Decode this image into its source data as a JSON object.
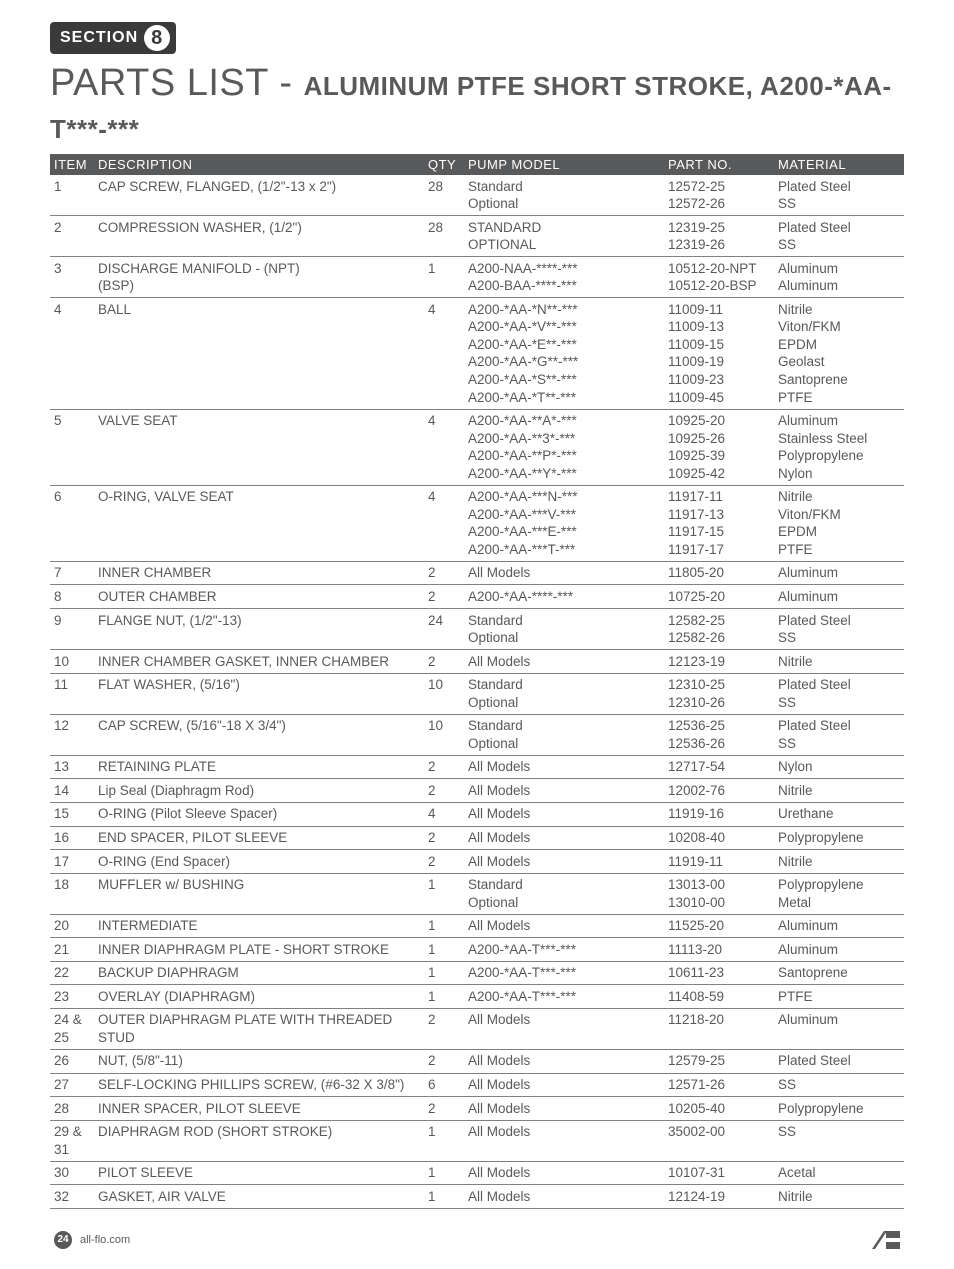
{
  "section": {
    "label": "SECTION",
    "number": "8"
  },
  "title": {
    "main": "PARTS LIST - ",
    "sub": "ALUMINUM PTFE SHORT STROKE, A200-*AA-T***-***"
  },
  "columns": [
    "ITEM",
    "DESCRIPTION",
    "QTY",
    "PUMP MODEL",
    "PART NO.",
    "MATERIAL"
  ],
  "rows": [
    {
      "item": "1",
      "desc": "CAP SCREW, FLANGED, (1/2\"-13 x 2\")",
      "qty": "28",
      "model": "Standard\nOptional",
      "part": "12572-25\n12572-26",
      "mat": "Plated Steel\nSS"
    },
    {
      "item": "2",
      "desc": "COMPRESSION WASHER, (1/2\")",
      "qty": "28",
      "model": "STANDARD\nOPTIONAL",
      "part": "12319-25\n12319-26",
      "mat": "Plated Steel\nSS"
    },
    {
      "item": "3",
      "desc": "DISCHARGE MANIFOLD - (NPT)\n(BSP)",
      "qty": "1",
      "model": "A200-NAA-****-***\nA200-BAA-****-***",
      "part": "10512-20-NPT\n10512-20-BSP",
      "mat": "Aluminum\nAluminum"
    },
    {
      "item": "4",
      "desc": "BALL",
      "qty": "4",
      "model": "A200-*AA-*N**-***\nA200-*AA-*V**-***\nA200-*AA-*E**-***\nA200-*AA-*G**-***\nA200-*AA-*S**-***\nA200-*AA-*T**-***",
      "part": "11009-11\n11009-13\n11009-15\n11009-19\n11009-23\n11009-45",
      "mat": "Nitrile\nViton/FKM\nEPDM\nGeolast\nSantoprene\nPTFE"
    },
    {
      "item": "5",
      "desc": "VALVE SEAT",
      "qty": "4",
      "model": "A200-*AA-**A*-***\nA200-*AA-**3*-***\nA200-*AA-**P*-***\nA200-*AA-**Y*-***",
      "part": "10925-20\n10925-26\n10925-39\n10925-42",
      "mat": "Aluminum\nStainless Steel\nPolypropylene\nNylon"
    },
    {
      "item": "6",
      "desc": "O-RING, VALVE SEAT",
      "qty": "4",
      "model": "A200-*AA-***N-***\nA200-*AA-***V-***\nA200-*AA-***E-***\nA200-*AA-***T-***",
      "part": "11917-11\n11917-13\n11917-15\n11917-17",
      "mat": "Nitrile\nViton/FKM\nEPDM\nPTFE"
    },
    {
      "item": "7",
      "desc": "INNER CHAMBER",
      "qty": "2",
      "model": "All Models",
      "part": "11805-20",
      "mat": "Aluminum"
    },
    {
      "item": "8",
      "desc": "OUTER CHAMBER",
      "qty": "2",
      "model": "A200-*AA-****-***",
      "part": "10725-20",
      "mat": "Aluminum"
    },
    {
      "item": "9",
      "desc": "FLANGE NUT, (1/2\"-13)",
      "qty": "24",
      "model": "Standard\nOptional",
      "part": "12582-25\n12582-26",
      "mat": "Plated Steel\nSS"
    },
    {
      "item": "10",
      "desc": "INNER CHAMBER GASKET, INNER CHAMBER",
      "qty": "2",
      "model": "All Models",
      "part": "12123-19",
      "mat": "Nitrile"
    },
    {
      "item": "11",
      "desc": "FLAT WASHER, (5/16\")",
      "qty": "10",
      "model": "Standard\nOptional",
      "part": "12310-25\n12310-26",
      "mat": "Plated Steel\nSS"
    },
    {
      "item": "12",
      "desc": "CAP SCREW, (5/16\"-18 X 3/4\")",
      "qty": "10",
      "model": "Standard\nOptional",
      "part": "12536-25\n12536-26",
      "mat": "Plated Steel\nSS"
    },
    {
      "item": "13",
      "desc": "RETAINING PLATE",
      "qty": "2",
      "model": "All Models",
      "part": "12717-54",
      "mat": "Nylon"
    },
    {
      "item": "14",
      "desc": "Lip Seal (Diaphragm Rod)",
      "qty": "2",
      "model": "All Models",
      "part": "12002-76",
      "mat": "Nitrile"
    },
    {
      "item": "15",
      "desc": "O-RING (Pilot Sleeve Spacer)",
      "qty": "4",
      "model": "All Models",
      "part": "11919-16",
      "mat": "Urethane"
    },
    {
      "item": "16",
      "desc": "END SPACER, PILOT SLEEVE",
      "qty": "2",
      "model": "All Models",
      "part": "10208-40",
      "mat": "Polypropylene"
    },
    {
      "item": "17",
      "desc": "O-RING (End Spacer)",
      "qty": "2",
      "model": "All Models",
      "part": "11919-11",
      "mat": "Nitrile"
    },
    {
      "item": "18",
      "desc": "MUFFLER w/ BUSHING",
      "qty": "1",
      "model": "Standard\nOptional",
      "part": "13013-00\n13010-00",
      "mat": "Polypropylene\nMetal"
    },
    {
      "item": "20",
      "desc": "INTERMEDIATE",
      "qty": "1",
      "model": "All Models",
      "part": "11525-20",
      "mat": "Aluminum"
    },
    {
      "item": "21",
      "desc": "INNER DIAPHRAGM PLATE - SHORT STROKE",
      "qty": "1",
      "model": "A200-*AA-T***-***",
      "part": "11113-20",
      "mat": "Aluminum"
    },
    {
      "item": "22",
      "desc": "BACKUP DIAPHRAGM",
      "qty": "1",
      "model": "A200-*AA-T***-***",
      "part": "10611-23",
      "mat": "Santoprene"
    },
    {
      "item": "23",
      "desc": "OVERLAY (DIAPHRAGM)",
      "qty": "1",
      "model": "A200-*AA-T***-***",
      "part": "11408-59",
      "mat": "PTFE"
    },
    {
      "item": "24 & 25",
      "desc": "OUTER DIAPHRAGM PLATE WITH THREADED STUD",
      "qty": "2",
      "model": "All Models",
      "part": "11218-20",
      "mat": "Aluminum"
    },
    {
      "item": "26",
      "desc": "NUT,  (5/8\"-11)",
      "qty": "2",
      "model": "All Models",
      "part": "12579-25",
      "mat": "Plated Steel"
    },
    {
      "item": "27",
      "desc": "SELF-LOCKING PHILLIPS SCREW, (#6-32 X 3/8\")",
      "qty": "6",
      "model": "All Models",
      "part": "12571-26",
      "mat": "SS"
    },
    {
      "item": "28",
      "desc": "INNER SPACER, PILOT SLEEVE",
      "qty": "2",
      "model": "All Models",
      "part": "10205-40",
      "mat": "Polypropylene"
    },
    {
      "item": "29 & 31",
      "desc": "DIAPHRAGM ROD (SHORT STROKE)",
      "qty": "1",
      "model": "All Models",
      "part": "35002-00",
      "mat": "SS"
    },
    {
      "item": "30",
      "desc": "PILOT SLEEVE",
      "qty": "1",
      "model": "All Models",
      "part": "10107-31",
      "mat": "Acetal"
    },
    {
      "item": "32",
      "desc": "GASKET, AIR VALVE",
      "qty": "1",
      "model": "All Models",
      "part": "12124-19",
      "mat": "Nitrile"
    }
  ],
  "footer": {
    "page": "24",
    "site": "all-flo.com"
  },
  "style": {
    "header_bg": "#58595b",
    "header_fg": "#ffffff",
    "text_color": "#58595b",
    "rule_color": "#808184",
    "font_size_body": 13.5,
    "font_size_title_main": 38,
    "font_size_title_sub": 26
  }
}
